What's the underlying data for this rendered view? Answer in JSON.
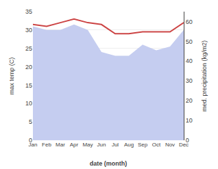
{
  "chart_data": {
    "type": "line",
    "categories": [
      "Jan",
      "Feb",
      "Mar",
      "Apr",
      "May",
      "Jun",
      "Jul",
      "Aug",
      "Sep",
      "Oct",
      "Nov",
      "Dec"
    ],
    "series": [
      {
        "type": "area",
        "color": "#c5cdf0",
        "values": [
          31.0,
          30.0,
          30.0,
          31.5,
          30.0,
          24.0,
          23.0,
          23.0,
          26.0,
          24.5,
          25.5,
          30.0
        ]
      },
      {
        "type": "line",
        "color": "#cc4444",
        "values": [
          31.5,
          31.0,
          32.0,
          33.0,
          32.0,
          31.5,
          29.0,
          29.0,
          29.5,
          29.5,
          29.5,
          32.0
        ]
      }
    ],
    "xlabel": "date (month)",
    "ylabel": "max temp (C)",
    "y2label": "med. precipitation (kg/m2)",
    "ylim": [
      0,
      35
    ],
    "yticks": [
      0,
      5,
      10,
      15,
      20,
      25,
      30,
      35
    ],
    "y2lim": [
      0,
      65
    ],
    "y2ticks": [
      0,
      10,
      20,
      30,
      40,
      50,
      60
    ],
    "grid": true
  }
}
